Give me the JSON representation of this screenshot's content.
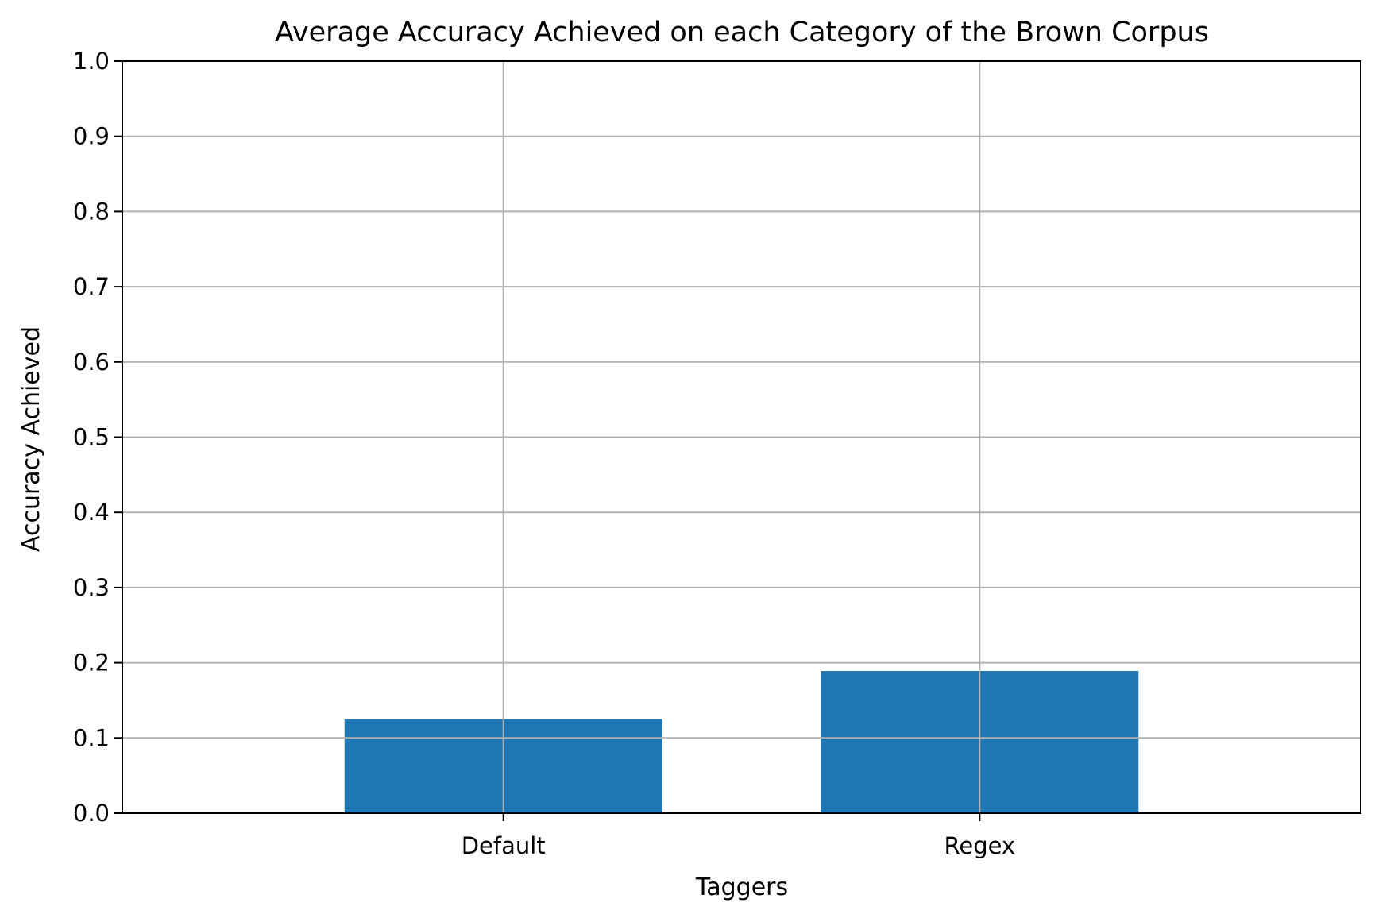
{
  "chart_data": {
    "type": "bar",
    "title": "Average Accuracy Achieved on each Category of the Brown Corpus",
    "xlabel": "Taggers",
    "ylabel": "Accuracy Achieved",
    "categories": [
      "Default",
      "Regex"
    ],
    "values": [
      0.125,
      0.189
    ],
    "ylim": [
      0.0,
      1.0
    ],
    "yticks": [
      "0.0",
      "0.1",
      "0.2",
      "0.3",
      "0.4",
      "0.5",
      "0.6",
      "0.7",
      "0.8",
      "0.9",
      "1.0"
    ],
    "grid": true,
    "bar_color": "#1f77b4"
  }
}
